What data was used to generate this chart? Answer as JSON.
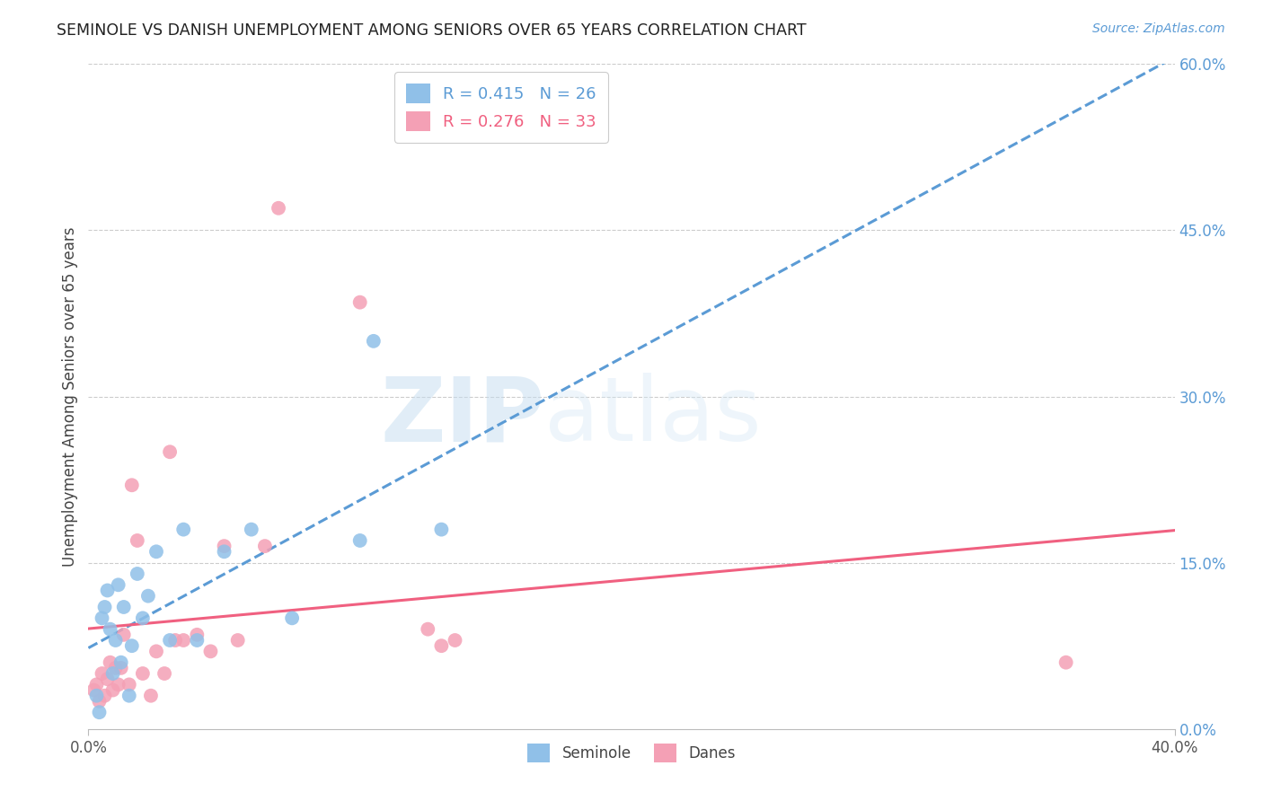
{
  "title": "SEMINOLE VS DANISH UNEMPLOYMENT AMONG SENIORS OVER 65 YEARS CORRELATION CHART",
  "source": "Source: ZipAtlas.com",
  "ylabel": "Unemployment Among Seniors over 65 years",
  "xlim": [
    0.0,
    40.0
  ],
  "ylim": [
    0.0,
    60.0
  ],
  "xlabel_ticks": [
    0.0,
    40.0
  ],
  "ylabel_right_ticks": [
    0.0,
    15.0,
    30.0,
    45.0,
    60.0
  ],
  "seminole_R": 0.415,
  "seminole_N": 26,
  "danes_R": 0.276,
  "danes_N": 33,
  "seminole_color": "#90c0e8",
  "danes_color": "#f4a0b5",
  "seminole_line_color": "#5b9bd5",
  "danes_line_color": "#f06080",
  "legend_seminole_label": "Seminole",
  "legend_danes_label": "Danes",
  "seminole_x": [
    0.3,
    0.5,
    0.6,
    0.7,
    0.8,
    0.9,
    1.0,
    1.1,
    1.2,
    1.3,
    1.5,
    1.6,
    1.8,
    2.0,
    2.2,
    2.5,
    3.0,
    3.5,
    4.0,
    5.0,
    6.0,
    7.5,
    10.0,
    10.5,
    13.0,
    0.4
  ],
  "seminole_y": [
    3.0,
    10.0,
    11.0,
    12.5,
    9.0,
    5.0,
    8.0,
    13.0,
    6.0,
    11.0,
    3.0,
    7.5,
    14.0,
    10.0,
    12.0,
    16.0,
    8.0,
    18.0,
    8.0,
    16.0,
    18.0,
    10.0,
    17.0,
    35.0,
    18.0,
    1.5
  ],
  "danes_x": [
    0.2,
    0.3,
    0.4,
    0.5,
    0.6,
    0.7,
    0.8,
    0.9,
    1.0,
    1.1,
    1.2,
    1.3,
    1.5,
    1.6,
    1.8,
    2.0,
    2.3,
    2.5,
    2.8,
    3.0,
    3.2,
    3.5,
    4.0,
    4.5,
    5.0,
    5.5,
    6.5,
    7.0,
    10.0,
    12.5,
    13.0,
    13.5,
    36.0
  ],
  "danes_y": [
    3.5,
    4.0,
    2.5,
    5.0,
    3.0,
    4.5,
    6.0,
    3.5,
    5.5,
    4.0,
    5.5,
    8.5,
    4.0,
    22.0,
    17.0,
    5.0,
    3.0,
    7.0,
    5.0,
    25.0,
    8.0,
    8.0,
    8.5,
    7.0,
    16.5,
    8.0,
    16.5,
    47.0,
    38.5,
    9.0,
    7.5,
    8.0,
    6.0
  ],
  "background_color": "#ffffff",
  "grid_color": "#cccccc"
}
